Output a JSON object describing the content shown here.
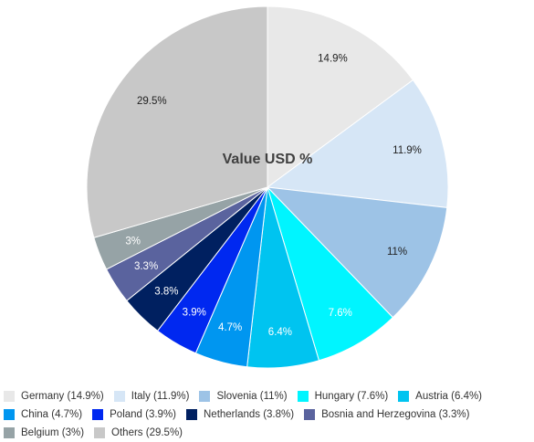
{
  "chart_data": {
    "type": "pie",
    "title": "Value USD %",
    "legend_position": "bottom",
    "slices": [
      {
        "label": "Germany (14.9%)",
        "value": 14.9,
        "data_label": "14.9%",
        "color": "#e8e8e8",
        "label_color": "#222222"
      },
      {
        "label": "Italy (11.9%)",
        "value": 11.9,
        "data_label": "11.9%",
        "color": "#d6e6f6",
        "label_color": "#222222"
      },
      {
        "label": "Slovenia (11%)",
        "value": 11.0,
        "data_label": "11%",
        "color": "#9dc3e6",
        "label_color": "#222222"
      },
      {
        "label": "Hungary (7.6%)",
        "value": 7.6,
        "data_label": "7.6%",
        "color": "#00f5ff",
        "label_color": "#ffffff"
      },
      {
        "label": "Austria (6.4%)",
        "value": 6.4,
        "data_label": "6.4%",
        "color": "#00c4f0",
        "label_color": "#ffffff"
      },
      {
        "label": "China (4.7%)",
        "value": 4.7,
        "data_label": "4.7%",
        "color": "#0096f0",
        "label_color": "#ffffff"
      },
      {
        "label": "Poland (3.9%)",
        "value": 3.9,
        "data_label": "3.9%",
        "color": "#0028f0",
        "label_color": "#ffffff"
      },
      {
        "label": "Netherlands (3.8%)",
        "value": 3.8,
        "data_label": "3.8%",
        "color": "#002060",
        "label_color": "#ffffff"
      },
      {
        "label": "Bosnia and Herzegovina (3.3%)",
        "value": 3.3,
        "data_label": "3.3%",
        "color": "#5a639e",
        "label_color": "#ffffff"
      },
      {
        "label": "Belgium (3%)",
        "value": 3.0,
        "data_label": "3%",
        "color": "#96a3a6",
        "label_color": "#ffffff"
      },
      {
        "label": "Others (29.5%)",
        "value": 29.5,
        "data_label": "29.5%",
        "color": "#c8c8c8",
        "label_color": "#222222"
      }
    ]
  }
}
